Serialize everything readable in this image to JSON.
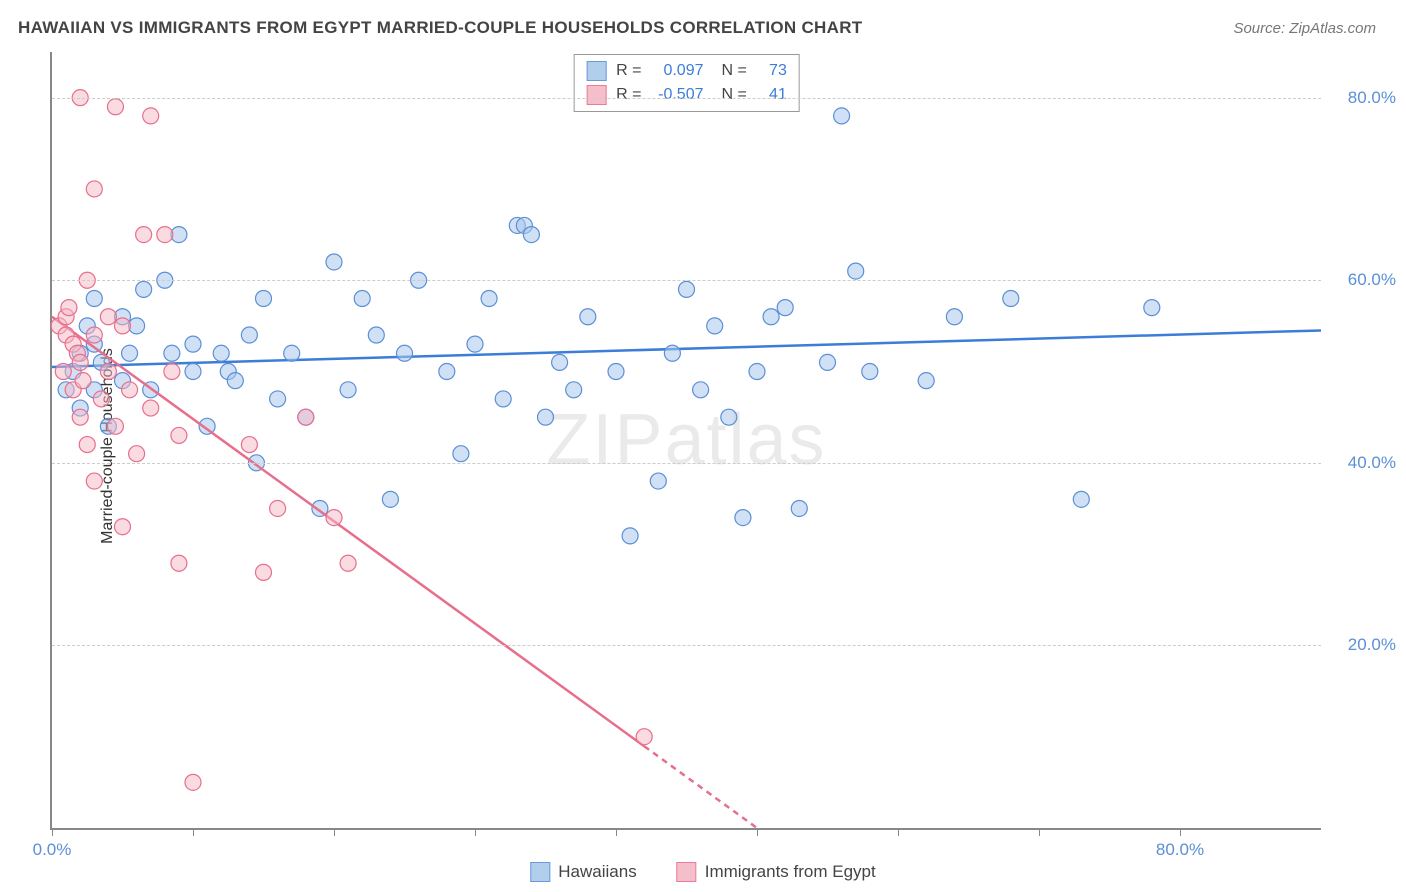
{
  "title": "HAWAIIAN VS IMMIGRANTS FROM EGYPT MARRIED-COUPLE HOUSEHOLDS CORRELATION CHART",
  "source_label": "Source: ZipAtlas.com",
  "watermark": "ZIPatlas",
  "ylabel": "Married-couple Households",
  "chart": {
    "type": "scatter",
    "xlim": [
      0,
      90
    ],
    "ylim": [
      0,
      85
    ],
    "x_ticks_pct": [
      0,
      10,
      20,
      30,
      40,
      50,
      60,
      70,
      80
    ],
    "x_tick_labels": {
      "0": "0.0%",
      "80": "80.0%"
    },
    "y_gridlines_pct": [
      20,
      40,
      60,
      80
    ],
    "y_tick_labels": {
      "20": "20.0%",
      "40": "40.0%",
      "60": "60.0%",
      "80": "80.0%"
    },
    "background_color": "#ffffff",
    "grid_color": "#cccccc",
    "axis_color": "#888888"
  },
  "series": [
    {
      "key": "hawaiians",
      "label": "Hawaiians",
      "color_fill": "#a9c9ec",
      "color_stroke": "#5b8fd6",
      "fill_opacity": 0.55,
      "marker_radius": 8,
      "R": "0.097",
      "N": "73",
      "regression": {
        "x1": 0,
        "y1": 50.5,
        "x2": 90,
        "y2": 54.5,
        "line_color": "#3b7dd8",
        "line_width": 2.5
      },
      "points": [
        [
          1,
          48
        ],
        [
          1.5,
          50
        ],
        [
          2,
          46
        ],
        [
          2,
          52
        ],
        [
          2.5,
          55
        ],
        [
          3,
          53
        ],
        [
          3,
          58
        ],
        [
          3,
          48
        ],
        [
          3.5,
          51
        ],
        [
          4,
          44
        ],
        [
          5,
          49
        ],
        [
          5,
          56
        ],
        [
          5.5,
          52
        ],
        [
          6,
          55
        ],
        [
          6.5,
          59
        ],
        [
          7,
          48
        ],
        [
          8,
          60
        ],
        [
          8.5,
          52
        ],
        [
          9,
          65
        ],
        [
          10,
          53
        ],
        [
          10,
          50
        ],
        [
          11,
          44
        ],
        [
          12,
          52
        ],
        [
          12.5,
          50
        ],
        [
          13,
          49
        ],
        [
          14,
          54
        ],
        [
          14.5,
          40
        ],
        [
          15,
          58
        ],
        [
          16,
          47
        ],
        [
          17,
          52
        ],
        [
          18,
          45
        ],
        [
          19,
          35
        ],
        [
          20,
          62
        ],
        [
          21,
          48
        ],
        [
          22,
          58
        ],
        [
          23,
          54
        ],
        [
          24,
          36
        ],
        [
          25,
          52
        ],
        [
          26,
          60
        ],
        [
          28,
          50
        ],
        [
          29,
          41
        ],
        [
          30,
          53
        ],
        [
          31,
          58
        ],
        [
          32,
          47
        ],
        [
          33,
          66
        ],
        [
          33.5,
          66
        ],
        [
          34,
          65
        ],
        [
          35,
          45
        ],
        [
          36,
          51
        ],
        [
          37,
          48
        ],
        [
          38,
          56
        ],
        [
          40,
          50
        ],
        [
          41,
          32
        ],
        [
          43,
          38
        ],
        [
          44,
          52
        ],
        [
          45,
          59
        ],
        [
          46,
          48
        ],
        [
          47,
          55
        ],
        [
          48,
          45
        ],
        [
          49,
          34
        ],
        [
          50,
          50
        ],
        [
          51,
          56
        ],
        [
          52,
          57
        ],
        [
          53,
          35
        ],
        [
          55,
          51
        ],
        [
          56,
          78
        ],
        [
          57,
          61
        ],
        [
          58,
          50
        ],
        [
          62,
          49
        ],
        [
          64,
          56
        ],
        [
          68,
          58
        ],
        [
          73,
          36
        ],
        [
          78,
          57
        ]
      ]
    },
    {
      "key": "egypt",
      "label": "Immigrants from Egypt",
      "color_fill": "#f5b8c6",
      "color_stroke": "#e76f8c",
      "fill_opacity": 0.5,
      "marker_radius": 8,
      "R": "-0.507",
      "N": "41",
      "regression": {
        "x1": 0,
        "y1": 56,
        "x2": 50,
        "y2": 0,
        "line_color": "#e76f8c",
        "line_width": 2.5,
        "dash_after_x": 42
      },
      "points": [
        [
          0.5,
          55
        ],
        [
          0.8,
          50
        ],
        [
          1,
          54
        ],
        [
          1,
          56
        ],
        [
          1.2,
          57
        ],
        [
          1.5,
          53
        ],
        [
          1.5,
          48
        ],
        [
          1.8,
          52
        ],
        [
          2,
          80
        ],
        [
          2,
          51
        ],
        [
          2,
          45
        ],
        [
          2.2,
          49
        ],
        [
          2.5,
          60
        ],
        [
          2.5,
          42
        ],
        [
          3,
          54
        ],
        [
          3,
          70
        ],
        [
          3,
          38
        ],
        [
          3.5,
          47
        ],
        [
          4,
          56
        ],
        [
          4,
          50
        ],
        [
          4.5,
          79
        ],
        [
          4.5,
          44
        ],
        [
          5,
          55
        ],
        [
          5,
          33
        ],
        [
          5.5,
          48
        ],
        [
          6,
          41
        ],
        [
          6.5,
          65
        ],
        [
          7,
          78
        ],
        [
          7,
          46
        ],
        [
          8,
          65
        ],
        [
          8.5,
          50
        ],
        [
          9,
          43
        ],
        [
          9,
          29
        ],
        [
          10,
          5
        ],
        [
          14,
          42
        ],
        [
          15,
          28
        ],
        [
          16,
          35
        ],
        [
          18,
          45
        ],
        [
          20,
          34
        ],
        [
          21,
          29
        ],
        [
          42,
          10
        ]
      ]
    }
  ],
  "legend_top": {
    "r_label": "R =",
    "n_label": "N ="
  },
  "colors": {
    "title": "#444444",
    "source": "#777777",
    "tick_label": "#5b8fd6",
    "stat_value": "#3b7dd8"
  }
}
